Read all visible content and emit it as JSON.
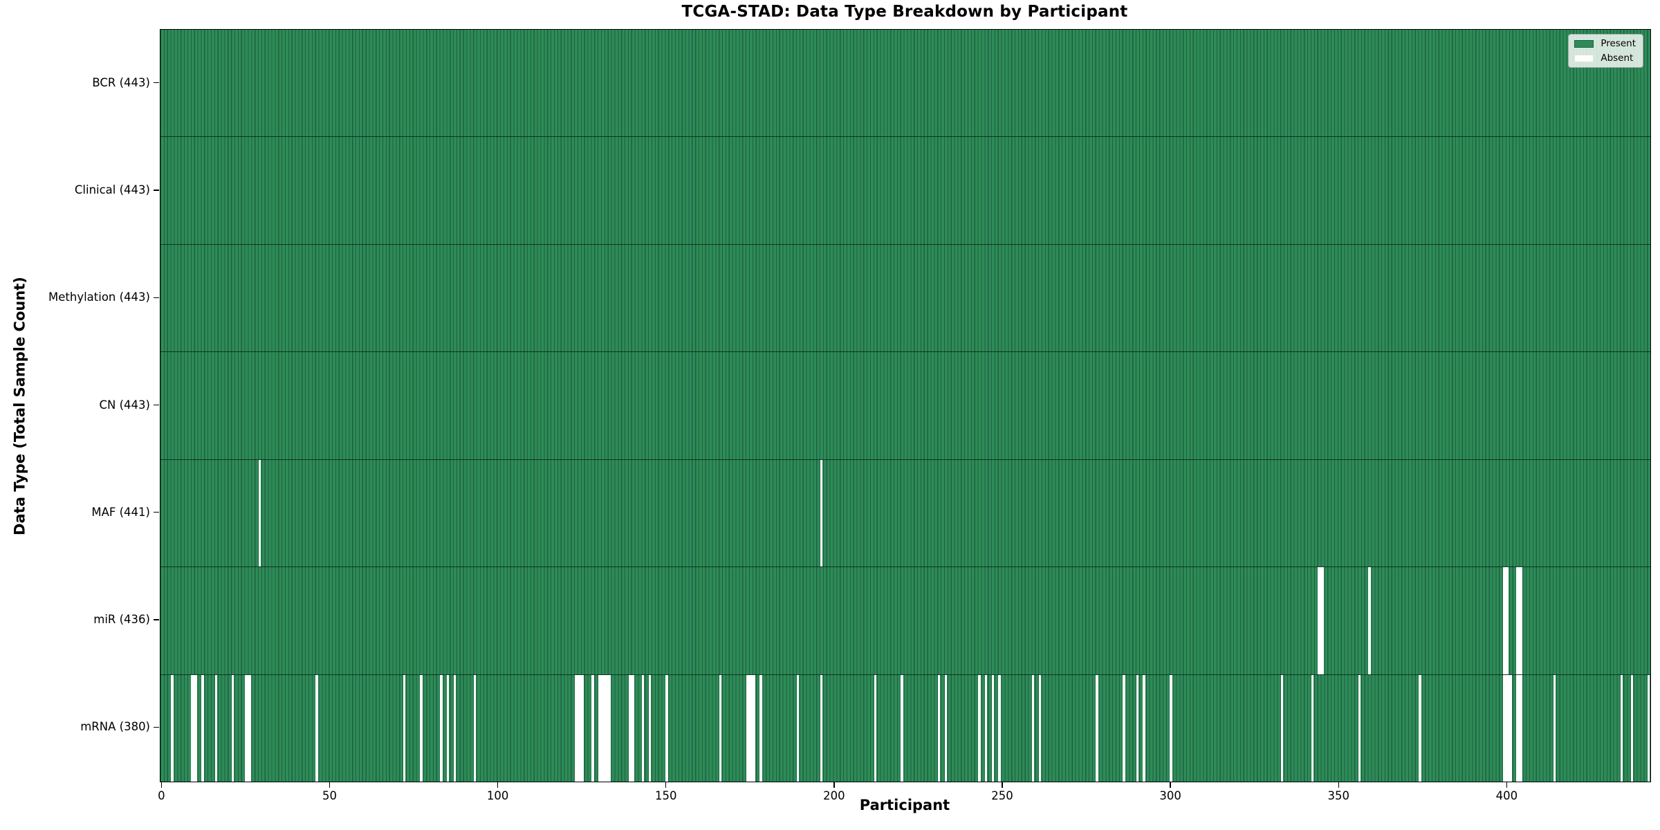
{
  "title": "TCGA-STAD: Data Type Breakdown by Participant",
  "x_axis": {
    "label": "Participant",
    "ticks": [
      0,
      50,
      100,
      150,
      200,
      250,
      300,
      350,
      400
    ]
  },
  "y_axis": {
    "label": "Data Type (Total Sample Count)"
  },
  "legend": {
    "present_label": "Present",
    "absent_label": "Absent"
  },
  "colors": {
    "present": "#2e8b57",
    "bar_edge": "#1c6141",
    "absent": "#ffffff",
    "axis": "#000000"
  },
  "chart_data": {
    "type": "heatmap",
    "title": "TCGA-STAD: Data Type Breakdown by Participant",
    "xlabel": "Participant",
    "ylabel": "Data Type (Total Sample Count)",
    "x_range": [
      0,
      443
    ],
    "total_participants": 443,
    "legend_entries": [
      "Present",
      "Absent"
    ],
    "legend_position": "upper right",
    "grid": false,
    "rows": [
      {
        "label": "BCR (443)",
        "data_type": "BCR",
        "present_count": 443,
        "absent_participants": []
      },
      {
        "label": "Clinical (443)",
        "data_type": "Clinical",
        "present_count": 443,
        "absent_participants": []
      },
      {
        "label": "Methylation (443)",
        "data_type": "Methylation",
        "present_count": 443,
        "absent_participants": []
      },
      {
        "label": "CN (443)",
        "data_type": "CN",
        "present_count": 443,
        "absent_participants": []
      },
      {
        "label": "MAF (441)",
        "data_type": "MAF",
        "present_count": 441,
        "absent_participants": [
          29,
          196
        ]
      },
      {
        "label": "miR (436)",
        "data_type": "miR",
        "present_count": 436,
        "absent_participants": [
          344,
          345,
          359,
          399,
          400,
          403,
          404
        ]
      },
      {
        "label": "mRNA (380)",
        "data_type": "mRNA",
        "present_count": 380,
        "absent_participants": [
          3,
          9,
          10,
          12,
          16,
          21,
          25,
          26,
          46,
          72,
          77,
          83,
          85,
          87,
          93,
          123,
          124,
          125,
          128,
          130,
          131,
          132,
          133,
          139,
          140,
          143,
          145,
          150,
          166,
          174,
          175,
          176,
          178,
          189,
          196,
          212,
          220,
          231,
          233,
          243,
          245,
          247,
          249,
          259,
          261,
          278,
          286,
          290,
          292,
          300,
          333,
          342,
          356,
          374,
          399,
          400,
          401,
          403,
          404,
          414,
          434,
          437,
          442
        ]
      }
    ]
  }
}
